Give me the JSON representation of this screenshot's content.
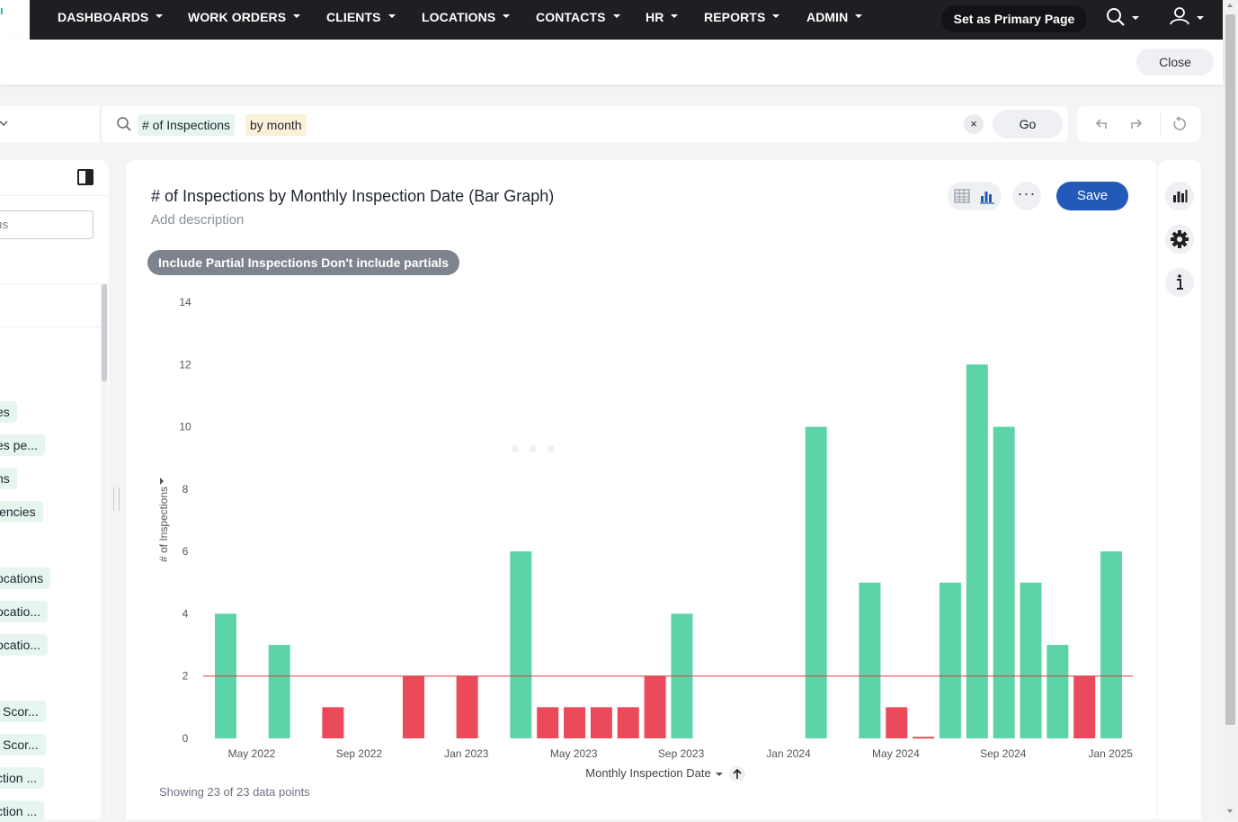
{
  "nav": {
    "brand_fragment": "ı",
    "items": [
      {
        "label": "DASHBOARDS"
      },
      {
        "label": "WORK ORDERS"
      },
      {
        "label": "CLIENTS"
      },
      {
        "label": "LOCATIONS"
      },
      {
        "label": "CONTACTS"
      },
      {
        "label": "HR"
      },
      {
        "label": "REPORTS"
      },
      {
        "label": "ADMIN"
      }
    ],
    "primary_button": "Set as Primary Page",
    "icons": [
      "search-icon",
      "user-icon"
    ]
  },
  "closebar": {
    "close_label": "Close"
  },
  "search": {
    "tokens": [
      {
        "text": "# of Inspections",
        "kind": "measure"
      },
      {
        "text": "by month",
        "kind": "attribute"
      }
    ],
    "clear_label": "×",
    "go_label": "Go",
    "history_icons": [
      "undo-icon",
      "redo-icon",
      "reset-icon"
    ]
  },
  "leftpanel": {
    "search_placeholder": "ıs",
    "chips": [
      "es",
      "es pe...",
      "ns",
      "iencies",
      "ocations",
      "ocatio...",
      "ocatio...",
      "l Scor...",
      "l Scor...",
      "ction ...",
      "ction ..."
    ]
  },
  "card": {
    "title": "# of Inspections by Monthly Inspection Date (Bar Graph)",
    "description": "Add description",
    "save_label": "Save",
    "more_label": "···",
    "filter_label": "Include Partial Inspections Don't include partials",
    "showing": "Showing 23 of 23 data points",
    "x_axis_title": "Monthly Inspection Date",
    "y_axis_title": "# of Inspections"
  },
  "colors": {
    "above": "#5cd4a7",
    "below": "#ea4a5a",
    "threshold": "#d93a44",
    "accent": "#2359b8"
  },
  "chart_data": {
    "type": "bar",
    "title": "# of Inspections by Monthly Inspection Date (Bar Graph)",
    "xlabel": "Monthly Inspection Date",
    "ylabel": "# of Inspections",
    "ylim": [
      0,
      14
    ],
    "yticks": [
      0,
      2,
      4,
      6,
      8,
      10,
      12,
      14
    ],
    "threshold": 2,
    "x_tick_labels": [
      "May 2022",
      "Sep 2022",
      "Jan 2023",
      "May 2023",
      "Sep 2023",
      "Jan 2024",
      "May 2024",
      "Sep 2024",
      "Jan 2025"
    ],
    "bars": [
      {
        "month": "2022-05",
        "value": 4
      },
      {
        "month": "2022-07",
        "value": 3
      },
      {
        "month": "2022-09",
        "value": 1
      },
      {
        "month": "2022-12",
        "value": 2
      },
      {
        "month": "2023-02",
        "value": 2
      },
      {
        "month": "2023-04",
        "value": 6
      },
      {
        "month": "2023-05",
        "value": 1
      },
      {
        "month": "2023-06",
        "value": 1
      },
      {
        "month": "2023-07",
        "value": 1
      },
      {
        "month": "2023-08",
        "value": 1
      },
      {
        "month": "2023-09",
        "value": 2
      },
      {
        "month": "2023-10",
        "value": 4
      },
      {
        "month": "2024-03",
        "value": 10
      },
      {
        "month": "2024-05",
        "value": 5
      },
      {
        "month": "2024-06",
        "value": 1
      },
      {
        "month": "2024-07",
        "value": 0.05
      },
      {
        "month": "2024-08",
        "value": 5
      },
      {
        "month": "2024-09",
        "value": 12
      },
      {
        "month": "2024-10",
        "value": 10
      },
      {
        "month": "2024-11",
        "value": 5
      },
      {
        "month": "2024-12",
        "value": 3
      },
      {
        "month": "2025-01",
        "value": 2
      },
      {
        "month": "2025-02",
        "value": 6
      }
    ],
    "grid": false,
    "legend": "none"
  }
}
